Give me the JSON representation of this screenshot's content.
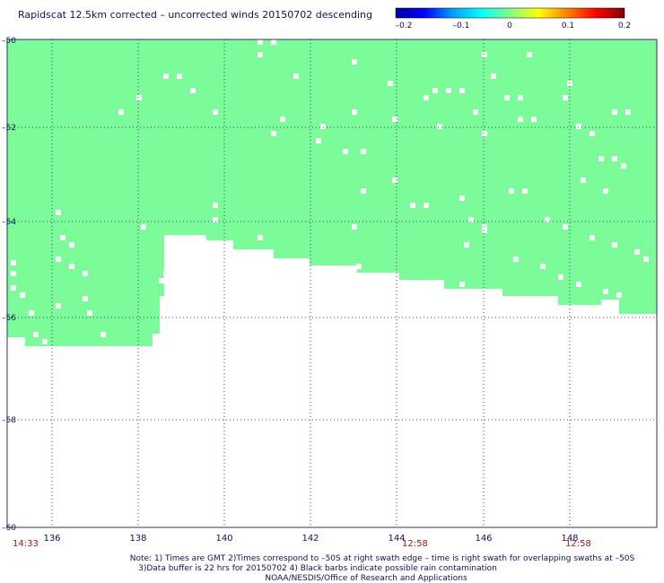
{
  "title": "Rapidscat 12.5km corrected – uncorrected winds 20150702 descending",
  "colorbar": {
    "ticks": [
      "–0.2",
      "–0.1",
      "0",
      "0.1",
      "0.2"
    ],
    "stops": [
      "#0000aa",
      "#0000ff",
      "#00a0ff",
      "#00ffff",
      "#80ff80",
      "#ffff00",
      "#ff8000",
      "#ff0000",
      "#800000"
    ]
  },
  "map": {
    "fill_color": "#7cfc98",
    "lat_ticks": [
      "–50",
      "–52",
      "–54",
      "–56",
      "–58",
      "–60"
    ],
    "lon_ticks": [
      "136",
      "138",
      "140",
      "142",
      "144",
      "146",
      "148"
    ],
    "time_labels": [
      "14:33",
      "12:58",
      "12:58"
    ],
    "grid": true
  },
  "footer": {
    "line1": "Note: 1) Times are GMT 2)Times correspond to –50S at right swath edge – time is right swath for overlapping swaths at –50S",
    "line2": "3)Data buffer is 22 hrs for 20150702 4) Black barbs indicate possible rain contamination",
    "line3": "NOAA/NESDIS/Office of Research and Applications"
  }
}
